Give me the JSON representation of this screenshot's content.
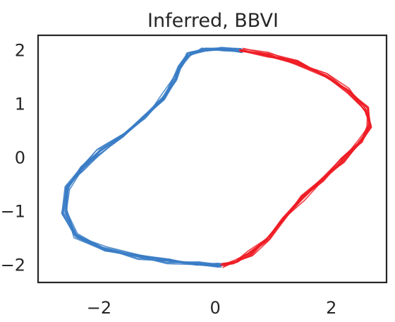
{
  "chart_data": {
    "type": "line",
    "title": "Inferred, BBVI",
    "xlabel": "",
    "ylabel": "",
    "xlim": [
      -3.05,
      2.95
    ],
    "ylim": [
      -2.32,
      2.28
    ],
    "grid": false,
    "legend": "none",
    "x_ticks": [
      {
        "value": -2,
        "label": "−2"
      },
      {
        "value": 0,
        "label": "0"
      },
      {
        "value": 2,
        "label": "2"
      }
    ],
    "y_ticks": [
      {
        "value": 2,
        "label": "2"
      },
      {
        "value": 1,
        "label": "1"
      },
      {
        "value": 0,
        "label": "0"
      },
      {
        "value": -1,
        "label": "−1"
      },
      {
        "value": -2,
        "label": "−2"
      }
    ],
    "trajectory_count": 12,
    "series": [
      {
        "color": "#3a7cc6",
        "x": [
          0.1,
          -0.3,
          -0.8,
          -1.3,
          -1.9,
          -2.4,
          -2.6,
          -2.55,
          -2.3,
          -2.0,
          -1.6,
          -1.2,
          -0.9,
          -0.7,
          -0.6,
          -0.45,
          -0.2,
          0.1,
          0.45
        ],
        "y": [
          -2.0,
          -1.97,
          -1.93,
          -1.85,
          -1.7,
          -1.45,
          -1.0,
          -0.55,
          -0.2,
          0.12,
          0.42,
          0.78,
          1.12,
          1.45,
          1.75,
          1.93,
          2.0,
          2.03,
          2.0
        ]
      },
      {
        "color": "#ee1c25",
        "x": [
          0.45,
          0.9,
          1.4,
          1.9,
          2.3,
          2.6,
          2.65,
          2.5,
          2.2,
          1.85,
          1.5,
          1.2,
          0.9,
          0.6,
          0.35,
          0.1
        ],
        "y": [
          2.0,
          1.92,
          1.78,
          1.55,
          1.25,
          0.9,
          0.6,
          0.3,
          -0.05,
          -0.4,
          -0.75,
          -1.1,
          -1.5,
          -1.78,
          -1.93,
          -2.0
        ]
      }
    ]
  }
}
